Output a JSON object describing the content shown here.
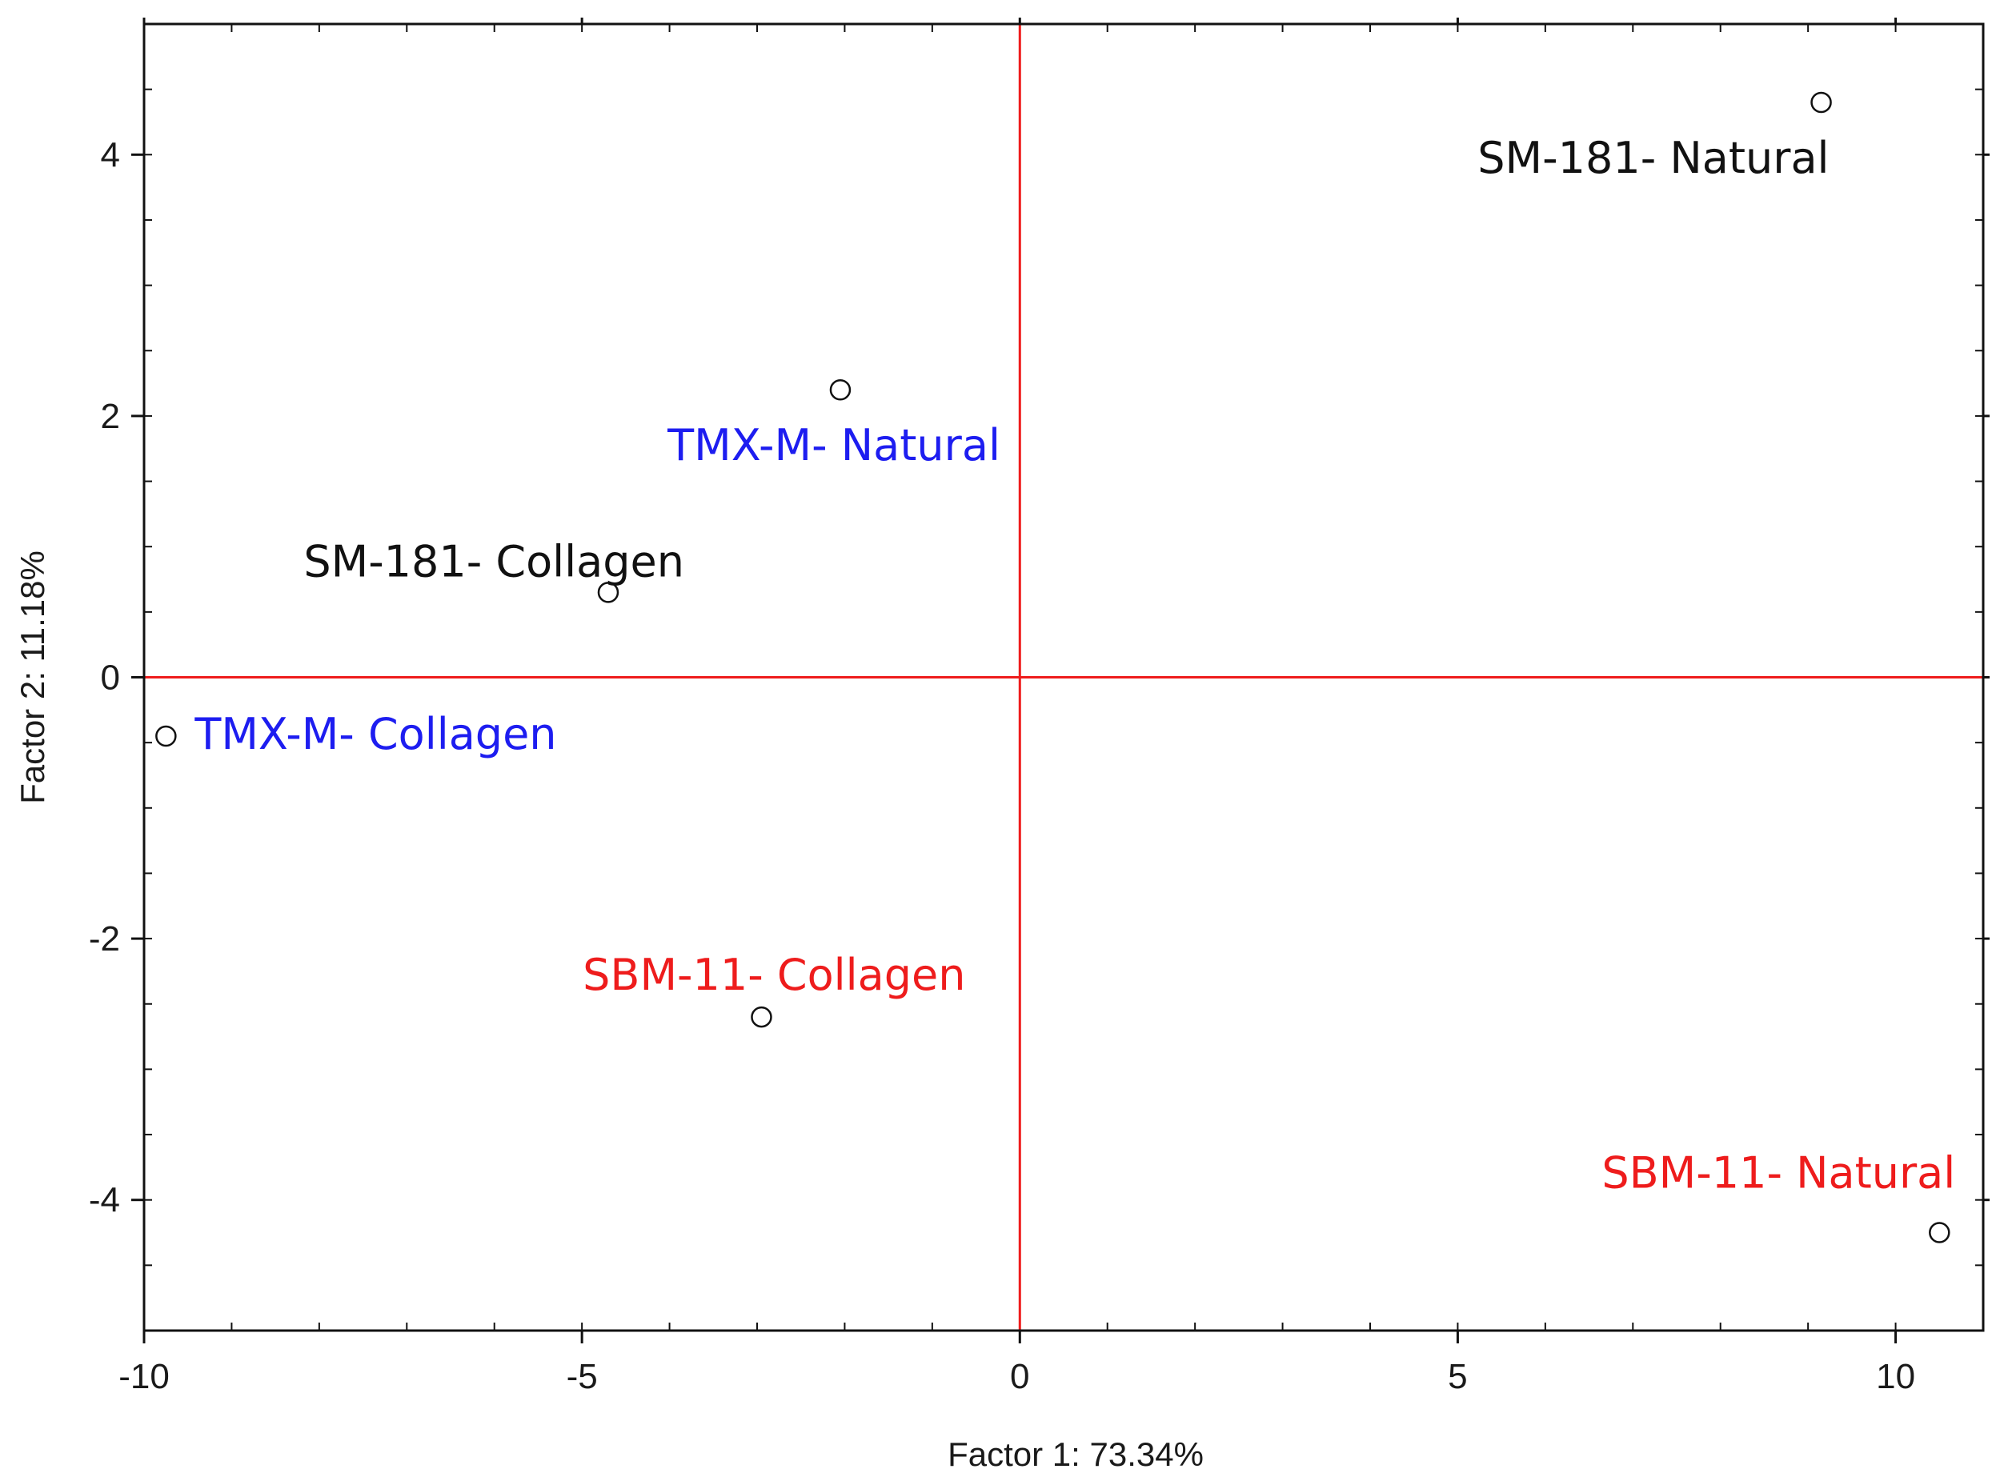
{
  "chart_data": {
    "type": "scatter",
    "xlabel": "Factor 1: 73.34%",
    "ylabel": "Factor 2: 11.18%",
    "xlim": [
      -10,
      11
    ],
    "ylim": [
      -5,
      5
    ],
    "x_ticks": [
      -10,
      -5,
      0,
      5,
      10
    ],
    "y_ticks": [
      -4,
      -2,
      0,
      2,
      4
    ],
    "x_tick_labels": [
      "-10",
      "-5",
      "0",
      "5",
      "10"
    ],
    "y_tick_labels": [
      "-4",
      "-2",
      "0",
      "2",
      "4"
    ],
    "reference_lines": {
      "x": 0,
      "y": 0,
      "color": "#ee1c1c"
    },
    "grid": false,
    "points": [
      {
        "label": "SM-181- Natural",
        "x": 9.15,
        "y": 4.4,
        "color": "#111111",
        "label_anchor": "below-left"
      },
      {
        "label": "TMX-M- Natural",
        "x": -2.05,
        "y": 2.2,
        "color": "#1d1df0",
        "label_anchor": "below-right"
      },
      {
        "label": "SM-181- Collagen",
        "x": -4.7,
        "y": 0.65,
        "color": "#111111",
        "label_anchor": "above-left"
      },
      {
        "label": "TMX-M- Collagen",
        "x": -9.75,
        "y": -0.45,
        "color": "#1d1df0",
        "label_anchor": "right"
      },
      {
        "label": "SBM-11- Collagen",
        "x": -2.95,
        "y": -2.6,
        "color": "#ee1c1c",
        "label_anchor": "above"
      },
      {
        "label": "SBM-11- Natural",
        "x": 10.5,
        "y": -4.25,
        "color": "#ee1c1c",
        "label_anchor": "above-left"
      }
    ]
  }
}
